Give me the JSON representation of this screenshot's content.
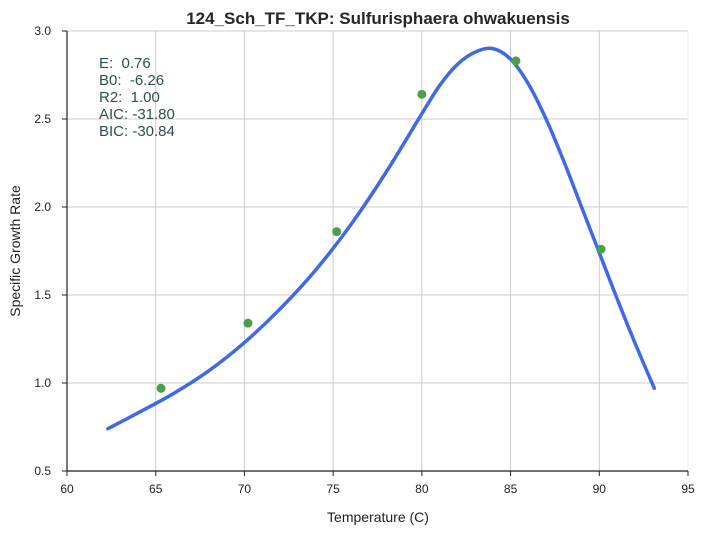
{
  "chart_data": {
    "type": "scatter",
    "title": "124_Sch_TF_TKP: Sulfurisphaera ohwakuensis",
    "xlabel": "Temperature (C)",
    "ylabel": "Specific Growth Rate",
    "xlim": [
      60,
      95
    ],
    "ylim": [
      0.5,
      3.0
    ],
    "xticks": [
      "60",
      "65",
      "70",
      "75",
      "80",
      "85",
      "90",
      "95"
    ],
    "yticks": [
      "0.5",
      "1.0",
      "1.5",
      "2.0",
      "2.5",
      "3.0"
    ],
    "grid": true,
    "points": [
      {
        "x": 65.3,
        "y": 0.97
      },
      {
        "x": 70.2,
        "y": 1.34
      },
      {
        "x": 75.2,
        "y": 1.86
      },
      {
        "x": 80.0,
        "y": 2.64
      },
      {
        "x": 85.3,
        "y": 2.83
      },
      {
        "x": 90.1,
        "y": 1.76
      }
    ],
    "fit_curve": [
      [
        62.3,
        0.74
      ],
      [
        64.0,
        0.83
      ],
      [
        66.0,
        0.94
      ],
      [
        68.0,
        1.07
      ],
      [
        70.0,
        1.23
      ],
      [
        72.0,
        1.42
      ],
      [
        74.0,
        1.64
      ],
      [
        76.0,
        1.9
      ],
      [
        78.0,
        2.2
      ],
      [
        80.0,
        2.53
      ],
      [
        81.0,
        2.69
      ],
      [
        82.0,
        2.81
      ],
      [
        83.0,
        2.88
      ],
      [
        84.0,
        2.9
      ],
      [
        85.0,
        2.84
      ],
      [
        86.0,
        2.7
      ],
      [
        87.0,
        2.5
      ],
      [
        88.0,
        2.26
      ],
      [
        89.0,
        2.0
      ],
      [
        90.0,
        1.74
      ],
      [
        91.0,
        1.48
      ],
      [
        92.0,
        1.23
      ],
      [
        93.1,
        0.97
      ]
    ],
    "annotations": [
      "E:  0.76",
      "B0:  -6.26",
      "R2:  1.00",
      "AIC: -31.80",
      "BIC: -30.84"
    ],
    "colors": {
      "curve": "#4169e1",
      "points": "#4aa04a",
      "grid": "#cccccc",
      "axis": "#222222",
      "annotation": "#2f4f4f"
    }
  }
}
